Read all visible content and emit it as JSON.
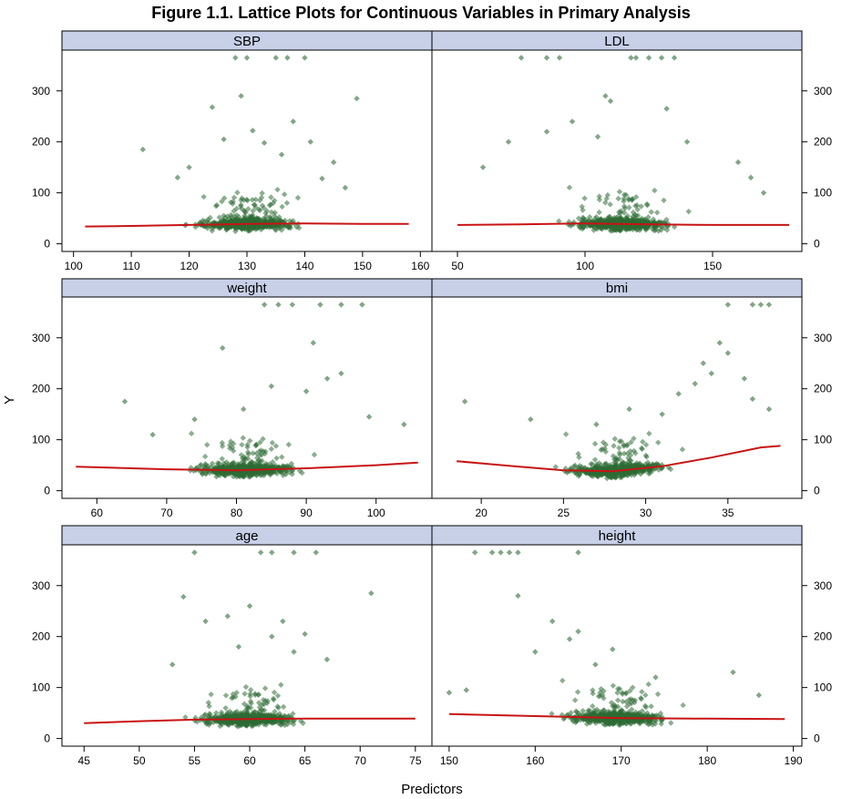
{
  "chart_data": {
    "type": "scatter",
    "title": "Figure 1.1. Lattice Plots for Continuous Variables in Primary Analysis",
    "xlabel": "Predictors",
    "ylabel": "Y",
    "ylim": [
      -15,
      380
    ],
    "yticks": [
      0,
      100,
      200,
      300
    ],
    "strip_color": "#c8d0e8",
    "point_color": "#2e6b35",
    "smooth_color": "#c81414",
    "layout": "2 columns x 3 rows",
    "panels": [
      {
        "name": "SBP",
        "xlim": [
          98,
          162
        ],
        "xticks": [
          100,
          110,
          120,
          130,
          140,
          150,
          160
        ],
        "y_axis_side": "left",
        "smooth": [
          [
            102,
            34
          ],
          [
            110,
            35
          ],
          [
            120,
            37
          ],
          [
            130,
            39
          ],
          [
            140,
            40
          ],
          [
            150,
            39
          ],
          [
            158,
            39
          ]
        ],
        "points": [
          [
            112,
            185
          ],
          [
            124,
            268
          ],
          [
            126,
            205
          ],
          [
            129,
            290
          ],
          [
            131,
            222
          ],
          [
            133,
            198
          ],
          [
            135,
            365
          ],
          [
            136,
            175
          ],
          [
            138,
            240
          ],
          [
            141,
            200
          ],
          [
            145,
            160
          ],
          [
            149,
            285
          ],
          [
            128,
            365
          ],
          [
            130,
            365
          ],
          [
            137,
            365
          ],
          [
            140,
            365
          ],
          [
            120,
            150
          ],
          [
            118,
            130
          ],
          [
            143,
            128
          ],
          [
            147,
            110
          ]
        ]
      },
      {
        "name": "LDL",
        "xlim": [
          40,
          185
        ],
        "xticks": [
          50,
          100,
          150
        ],
        "y_axis_side": "right",
        "smooth": [
          [
            50,
            37
          ],
          [
            75,
            38
          ],
          [
            100,
            40
          ],
          [
            125,
            38
          ],
          [
            150,
            37
          ],
          [
            180,
            37
          ]
        ],
        "points": [
          [
            75,
            365
          ],
          [
            85,
            365
          ],
          [
            90,
            365
          ],
          [
            105,
            210
          ],
          [
            108,
            290
          ],
          [
            110,
            280
          ],
          [
            118,
            365
          ],
          [
            120,
            365
          ],
          [
            125,
            365
          ],
          [
            130,
            365
          ],
          [
            135,
            365
          ],
          [
            132,
            265
          ],
          [
            140,
            200
          ],
          [
            95,
            240
          ],
          [
            85,
            220
          ],
          [
            160,
            160
          ],
          [
            165,
            130
          ],
          [
            70,
            200
          ],
          [
            60,
            150
          ],
          [
            170,
            100
          ]
        ]
      },
      {
        "name": "weight",
        "xlim": [
          55,
          108
        ],
        "xticks": [
          60,
          70,
          80,
          90,
          100
        ],
        "y_axis_side": "left",
        "smooth": [
          [
            57,
            47
          ],
          [
            70,
            42
          ],
          [
            80,
            40
          ],
          [
            90,
            44
          ],
          [
            100,
            50
          ],
          [
            106,
            55
          ]
        ],
        "points": [
          [
            84,
            365
          ],
          [
            86,
            365
          ],
          [
            88,
            365
          ],
          [
            92,
            365
          ],
          [
            95,
            365
          ],
          [
            98,
            365
          ],
          [
            78,
            280
          ],
          [
            91,
            290
          ],
          [
            93,
            220
          ],
          [
            95,
            230
          ],
          [
            64,
            175
          ],
          [
            85,
            205
          ],
          [
            90,
            195
          ],
          [
            81,
            160
          ],
          [
            74,
            140
          ],
          [
            99,
            145
          ],
          [
            104,
            130
          ],
          [
            68,
            110
          ]
        ]
      },
      {
        "name": "bmi",
        "xlim": [
          17,
          39.5
        ],
        "xticks": [
          20,
          25,
          30,
          35
        ],
        "y_axis_side": "right",
        "smooth": [
          [
            18.5,
            58
          ],
          [
            22,
            48
          ],
          [
            25,
            40
          ],
          [
            28,
            38
          ],
          [
            31,
            48
          ],
          [
            34,
            65
          ],
          [
            37,
            85
          ],
          [
            38.2,
            88
          ]
        ],
        "points": [
          [
            35,
            365
          ],
          [
            36.5,
            365
          ],
          [
            37,
            365
          ],
          [
            37.5,
            365
          ],
          [
            34.5,
            290
          ],
          [
            35,
            270
          ],
          [
            34,
            230
          ],
          [
            33,
            210
          ],
          [
            33.5,
            250
          ],
          [
            32,
            190
          ],
          [
            36,
            220
          ],
          [
            36.5,
            180
          ],
          [
            37.5,
            160
          ],
          [
            19,
            175
          ],
          [
            29,
            160
          ],
          [
            31,
            150
          ],
          [
            23,
            140
          ],
          [
            27,
            130
          ]
        ]
      },
      {
        "name": "age",
        "xlim": [
          43,
          76.5
        ],
        "xticks": [
          45,
          50,
          55,
          60,
          65,
          70,
          75
        ],
        "y_axis_side": "left",
        "smooth": [
          [
            45,
            30
          ],
          [
            50,
            34
          ],
          [
            55,
            37
          ],
          [
            60,
            38
          ],
          [
            65,
            39
          ],
          [
            70,
            39
          ],
          [
            75,
            39
          ]
        ],
        "points": [
          [
            55,
            365
          ],
          [
            61,
            365
          ],
          [
            62,
            365
          ],
          [
            64,
            365
          ],
          [
            66,
            365
          ],
          [
            54,
            278
          ],
          [
            56,
            230
          ],
          [
            58,
            240
          ],
          [
            60,
            260
          ],
          [
            63,
            230
          ],
          [
            65,
            205
          ],
          [
            71,
            285
          ],
          [
            59,
            180
          ],
          [
            62,
            200
          ],
          [
            64,
            170
          ],
          [
            67,
            155
          ],
          [
            53,
            145
          ]
        ]
      },
      {
        "name": "height",
        "xlim": [
          148,
          191
        ],
        "xticks": [
          150,
          160,
          170,
          180,
          190
        ],
        "y_axis_side": "right",
        "smooth": [
          [
            150,
            48
          ],
          [
            160,
            44
          ],
          [
            170,
            40
          ],
          [
            180,
            39
          ],
          [
            189,
            38
          ]
        ],
        "points": [
          [
            153,
            365
          ],
          [
            155,
            365
          ],
          [
            156,
            365
          ],
          [
            157,
            365
          ],
          [
            158,
            365
          ],
          [
            165,
            365
          ],
          [
            158,
            280
          ],
          [
            162,
            230
          ],
          [
            165,
            210
          ],
          [
            164,
            195
          ],
          [
            160,
            170
          ],
          [
            169,
            175
          ],
          [
            167,
            145
          ],
          [
            183,
            130
          ],
          [
            174,
            120
          ],
          [
            152,
            95
          ],
          [
            150,
            90
          ],
          [
            186,
            85
          ]
        ]
      }
    ]
  }
}
